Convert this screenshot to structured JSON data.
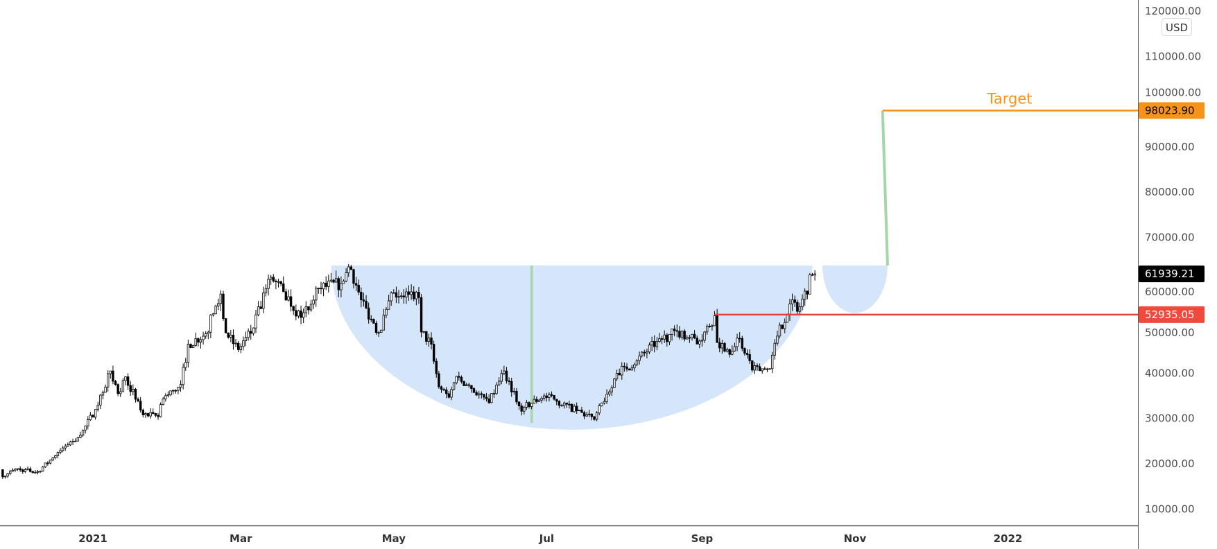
{
  "chart_data": {
    "type": "candlestick",
    "currency_badge": "USD",
    "y_axis": {
      "ticks": [
        10000,
        20000,
        30000,
        40000,
        50000,
        60000,
        70000,
        80000,
        90000,
        100000,
        110000,
        120000
      ],
      "tick_labels": [
        "10000.00",
        "20000.00",
        "30000.00",
        "40000.00",
        "50000.00",
        "60000.00",
        "70000.00",
        "80000.00",
        "90000.00",
        "100000.00",
        "110000.00",
        "120000.00"
      ],
      "range": [
        0,
        120000
      ]
    },
    "x_axis": {
      "ticks": [
        "2021-01-01",
        "2021-03-01",
        "2021-05-01",
        "2021-07-01",
        "2021-09-01",
        "2021-11-01",
        "2022-01-01"
      ],
      "tick_labels": [
        "2021",
        "Mar",
        "May",
        "Jul",
        "Sep",
        "Nov",
        "2022"
      ],
      "range": [
        "2020-11-25",
        "2022-03-01"
      ]
    },
    "price_path": [
      [
        "2020-11-25",
        18700
      ],
      [
        "2020-11-26",
        17100
      ],
      [
        "2020-12-01",
        18800
      ],
      [
        "2020-12-10",
        18250
      ],
      [
        "2020-12-16",
        21300
      ],
      [
        "2020-12-20",
        23500
      ],
      [
        "2020-12-27",
        26300
      ],
      [
        "2021-01-02",
        32000
      ],
      [
        "2021-01-08",
        40500
      ],
      [
        "2021-01-11",
        35500
      ],
      [
        "2021-01-14",
        39200
      ],
      [
        "2021-01-21",
        30800
      ],
      [
        "2021-01-27",
        30400
      ],
      [
        "2021-01-29",
        34300
      ],
      [
        "2021-02-05",
        37500
      ],
      [
        "2021-02-08",
        46400
      ],
      [
        "2021-02-15",
        48700
      ],
      [
        "2021-02-21",
        57500
      ],
      [
        "2021-02-23",
        48900
      ],
      [
        "2021-02-28",
        45200
      ],
      [
        "2021-03-05",
        48800
      ],
      [
        "2021-03-13",
        61200
      ],
      [
        "2021-03-18",
        58000
      ],
      [
        "2021-03-25",
        52300
      ],
      [
        "2021-04-01",
        58800
      ],
      [
        "2021-04-10",
        59800
      ],
      [
        "2021-04-13",
        63500
      ],
      [
        "2021-04-14",
        62900
      ],
      [
        "2021-04-18",
        56200
      ],
      [
        "2021-04-25",
        49000
      ],
      [
        "2021-05-01",
        57800
      ],
      [
        "2021-05-07",
        57400
      ],
      [
        "2021-05-11",
        56700
      ],
      [
        "2021-05-12",
        49100
      ],
      [
        "2021-05-16",
        46400
      ],
      [
        "2021-05-19",
        37000
      ],
      [
        "2021-05-23",
        34700
      ],
      [
        "2021-05-26",
        39300
      ],
      [
        "2021-06-01",
        36600
      ],
      [
        "2021-06-08",
        33500
      ],
      [
        "2021-06-14",
        40500
      ],
      [
        "2021-06-21",
        31600
      ],
      [
        "2021-06-22",
        32500
      ],
      [
        "2021-06-30",
        35000
      ],
      [
        "2021-07-05",
        33800
      ],
      [
        "2021-07-20",
        29800
      ],
      [
        "2021-07-25",
        35400
      ],
      [
        "2021-07-29",
        40000
      ],
      [
        "2021-08-06",
        42800
      ],
      [
        "2021-08-14",
        47000
      ],
      [
        "2021-08-22",
        49300
      ],
      [
        "2021-08-31",
        47100
      ],
      [
        "2021-09-06",
        52700
      ],
      [
        "2021-09-07",
        46800
      ],
      [
        "2021-09-13",
        44900
      ],
      [
        "2021-09-16",
        47700
      ],
      [
        "2021-09-21",
        40700
      ],
      [
        "2021-09-28",
        41000
      ],
      [
        "2021-10-01",
        48200
      ],
      [
        "2021-10-06",
        55300
      ],
      [
        "2021-10-10",
        54700
      ],
      [
        "2021-10-15",
        61700
      ],
      [
        "2021-10-16",
        61939.21
      ]
    ],
    "last_price": {
      "value": 61939.21,
      "label": "61939.21",
      "color": "#000000"
    },
    "drawings": {
      "cup": {
        "rim_price": 63800,
        "start": "2021-04-06",
        "end": "2021-10-15",
        "bottom_price": 27500,
        "color": "#d6e6fa"
      },
      "handle": {
        "start": "2021-10-19",
        "end": "2021-11-14",
        "bottom_price": 53300,
        "color": "#d6e6fa"
      },
      "cup_depth_line": {
        "date": "2021-06-25",
        "from": 63800,
        "to": 29000,
        "color": "#a5d6a7"
      },
      "projection_line": {
        "date_top": "2021-11-12",
        "date_bottom": "2021-11-14",
        "from": 63800,
        "to": 98023.9,
        "color": "#a5d6a7"
      },
      "target_line": {
        "start": "2021-11-12",
        "price": 98023.9,
        "label": "98023.90",
        "text": "Target",
        "color": "#f7931a"
      },
      "breakout_line": {
        "start": "2021-09-06",
        "price": 52935.05,
        "label": "52935.05",
        "color": "#e0453a"
      }
    }
  }
}
